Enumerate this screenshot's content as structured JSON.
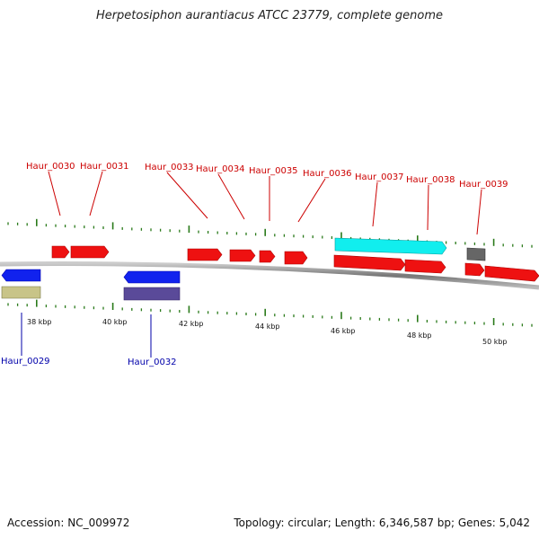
{
  "title": "Herpetosiphon aurantiacus ATCC 23779, complete genome",
  "footer": {
    "accession": "Accession: NC_009972",
    "summary": "Topology: circular; Length: 6,346,587 bp; Genes: 5,042"
  },
  "colors": {
    "label_forward": "#cc0000",
    "label_reverse": "#0000aa",
    "tick": "#2a7a1a",
    "backbone": "#888888",
    "red_gene": "#ee1111",
    "blue_gene": "#1122ee",
    "cyan_gene": "#11eeee",
    "grey_gene": "#666666",
    "khaki_gene": "#c8c488",
    "purple_gene": "#5a4a99"
  },
  "axis": {
    "labels": [
      "38 kbp",
      "40 kbp",
      "42 kbp",
      "44 kbp",
      "46 kbp",
      "48 kbp",
      "50 kbp"
    ]
  },
  "labels_forward": [
    "Haur_0030",
    "Haur_0031",
    "Haur_0033",
    "Haur_0034",
    "Haur_0035",
    "Haur_0036",
    "Haur_0037",
    "Haur_0038",
    "Haur_0039"
  ],
  "labels_reverse": [
    "Haur_0029",
    "Haur_0032"
  ]
}
